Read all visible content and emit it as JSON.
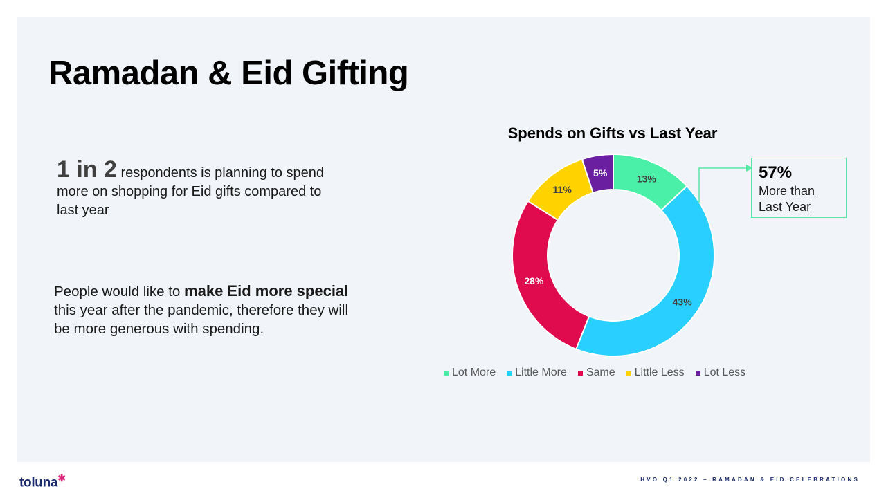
{
  "slide": {
    "title": "Ramadan & Eid Gifting",
    "stat": {
      "big": "1 in 2",
      "rest": "respondents is planning to spend more on shopping for Eid gifts compared to last year"
    },
    "insight": {
      "pre": "People would like to ",
      "bold": "make Eid more special",
      "post": " this year after the pandemic, therefore they will be more generous with spending."
    },
    "callout": {
      "value": "57%",
      "label": "More than Last Year"
    },
    "logo": {
      "text": "toluna",
      "star": "✱"
    },
    "footer": "HVO Q1 2022 – RAMADAN & EID CELEBRATIONS",
    "colors": {
      "panel": "#f1f4f9",
      "callout_border": "#5ce6a3",
      "brand_navy": "#1b2b6b"
    }
  },
  "chart_data": {
    "type": "pie",
    "style": "donut",
    "title": "Spends on Gifts vs Last Year",
    "categories": [
      "Lot More",
      "Little More",
      "Same",
      "Little Less",
      "Lot Less"
    ],
    "values": [
      13,
      43,
      28,
      11,
      5
    ],
    "labels": [
      "13%",
      "43%",
      "28%",
      "11%",
      "5%"
    ],
    "colors": [
      "#4af0a8",
      "#29d0ff",
      "#e00a4f",
      "#ffd200",
      "#6a1fa0"
    ],
    "label_colors": [
      "#404040",
      "#404040",
      "#ffffff",
      "#404040",
      "#ffffff"
    ],
    "legend_position": "bottom"
  }
}
